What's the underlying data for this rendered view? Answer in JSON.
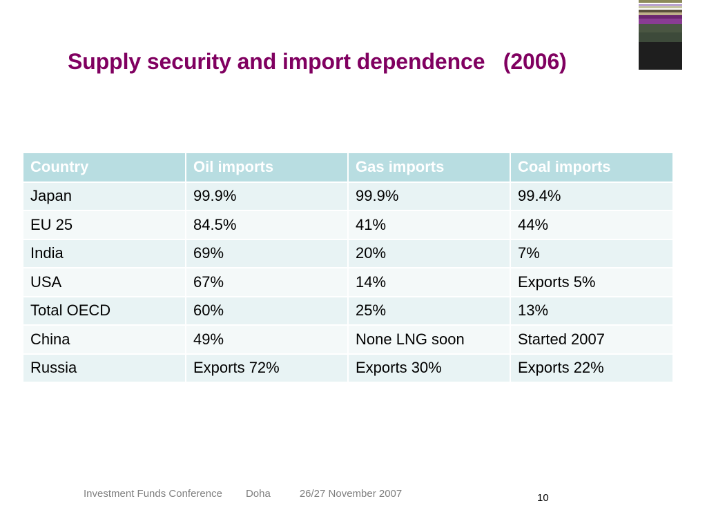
{
  "slide": {
    "title": "Supply security and import dependence   (2006)",
    "corner_decoration_colors": [
      "#8c8a5a",
      "#ffffff",
      "#b9a2cf",
      "#c6c6a2",
      "#ffffff",
      "#5a4f3c",
      "#bfb08a",
      "#6b2670",
      "#8a3c93",
      "#4a5642",
      "#3d4a3a",
      "#1e1e1e"
    ]
  },
  "table": {
    "header": [
      "Country",
      "Oil imports",
      "Gas imports",
      "Coal imports"
    ],
    "rows": [
      [
        "Japan",
        "99.9%",
        "99.9%",
        "99.4%"
      ],
      [
        "EU 25",
        "84.5%",
        "41%",
        "44%"
      ],
      [
        "India",
        "69%",
        "20%",
        "7%"
      ],
      [
        "USA",
        "67%",
        "14%",
        "Exports 5%"
      ],
      [
        "Total OECD",
        "60%",
        "25%",
        "13%"
      ],
      [
        "China",
        "49%",
        "None LNG soon",
        "Started 2007"
      ],
      [
        "Russia",
        "Exports 72%",
        "Exports 30%",
        "Exports 22%"
      ]
    ],
    "colors": {
      "header_bg": "#b8dde1",
      "header_text": "#ffffff",
      "row_bg_odd": "#e8f3f4",
      "row_bg_even": "#f4f9f9"
    }
  },
  "footer": {
    "conference": "Investment Funds Conference",
    "city": "Doha",
    "date": "26/27 November 2007",
    "page_number": "10"
  }
}
